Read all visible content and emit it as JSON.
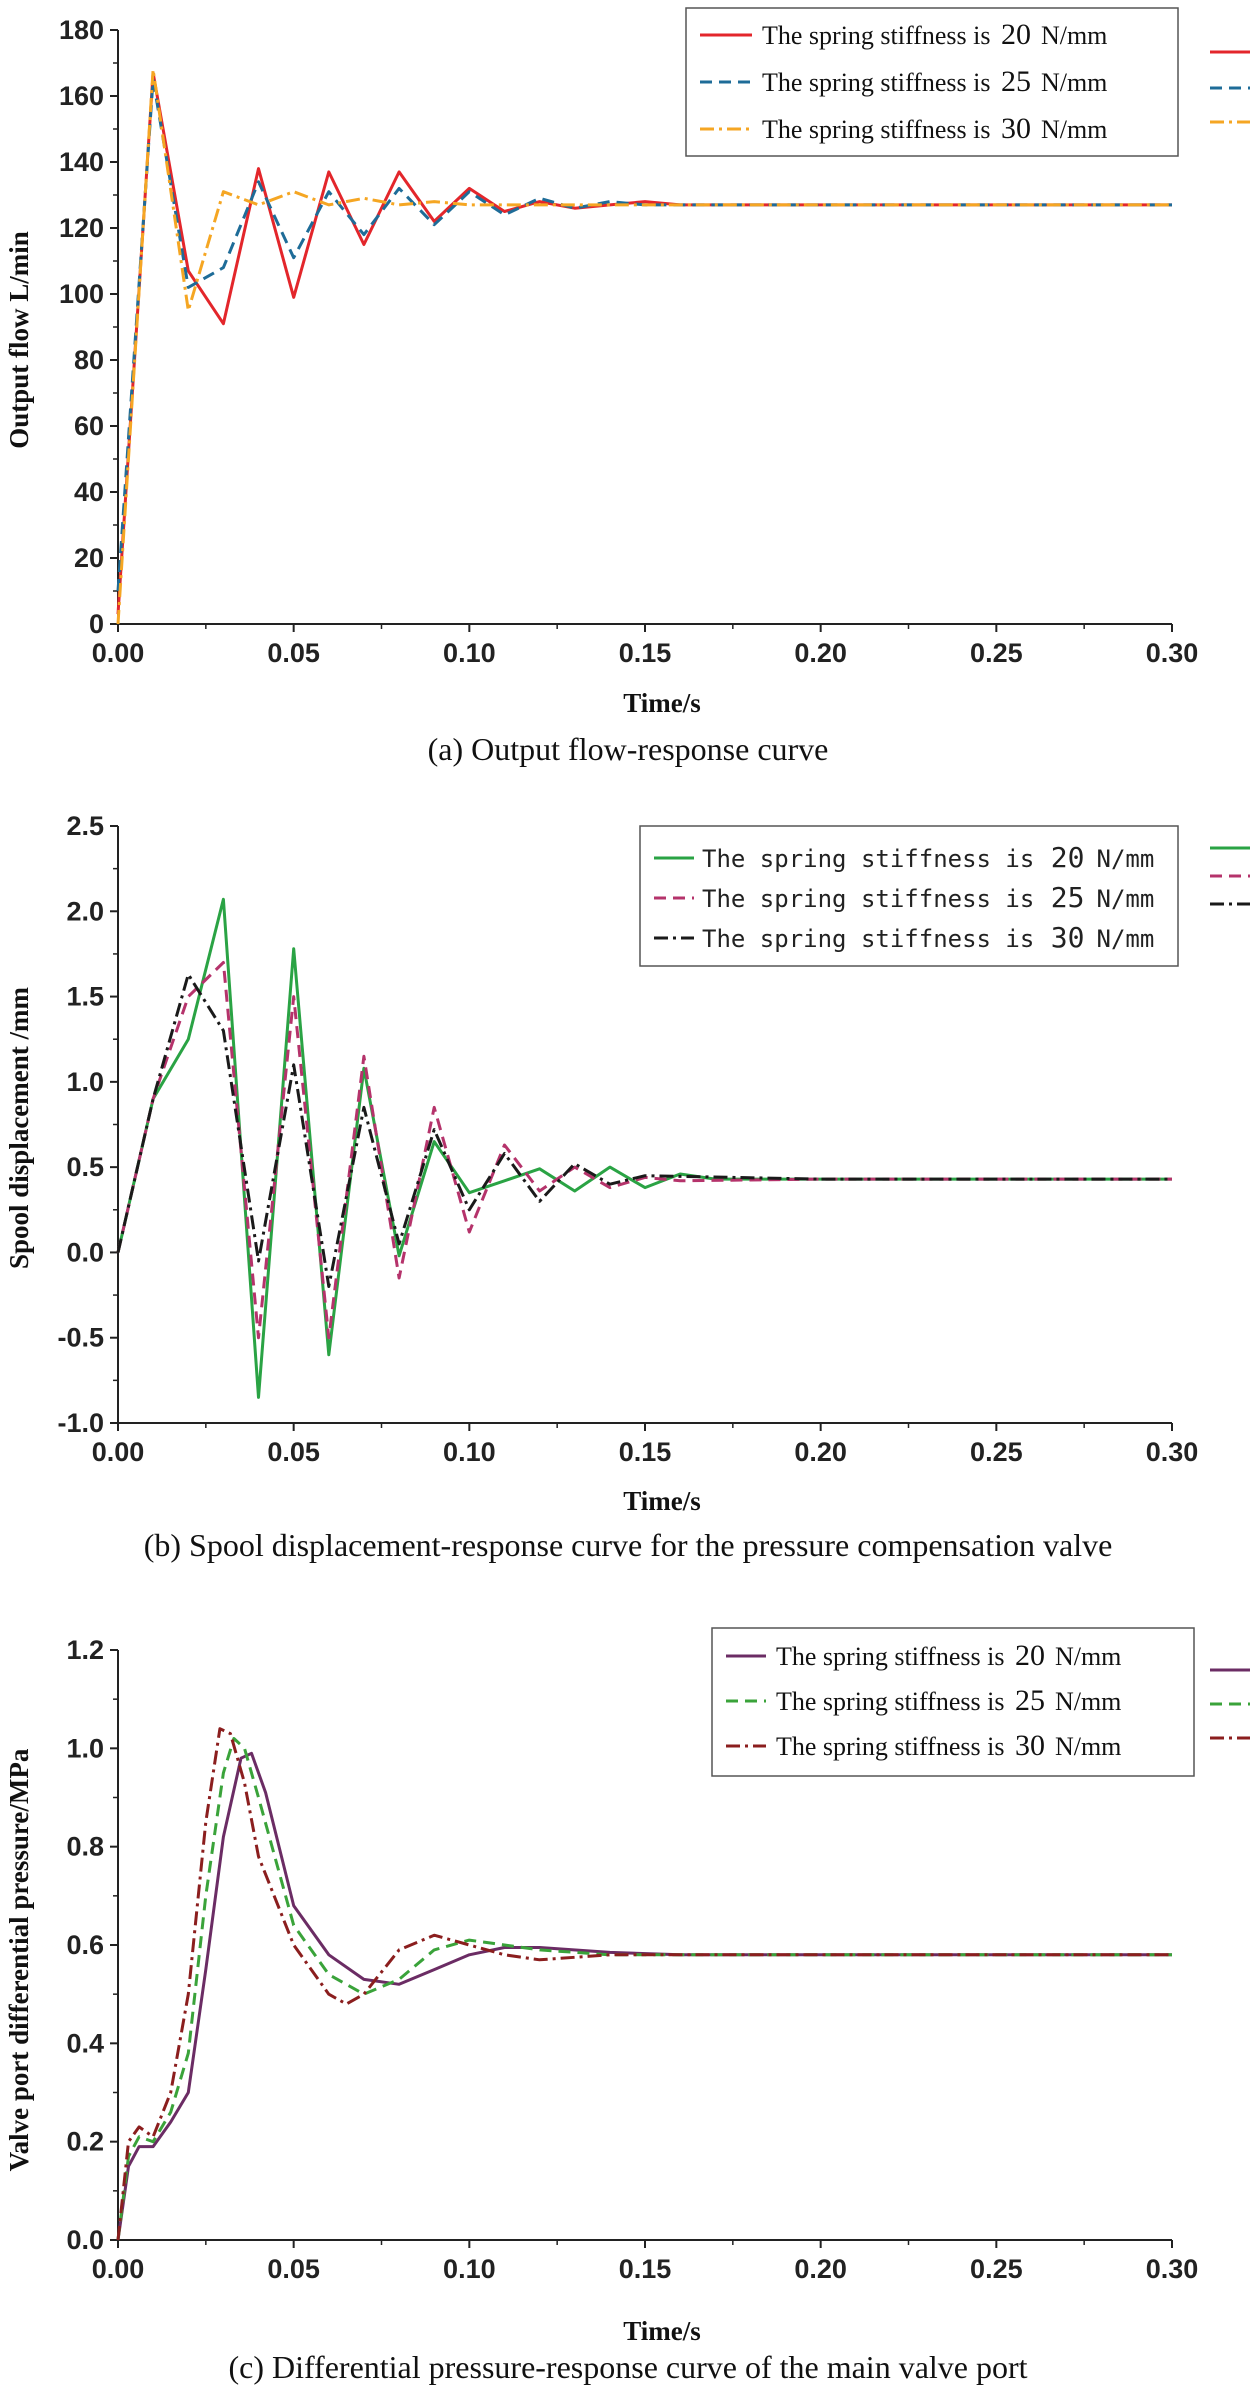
{
  "figure": {
    "captions": [
      "(a) Output flow-response curve",
      "(b) Spool displacement-response curve for the pressure compensation valve",
      "(c) Differential pressure-response curve of the main valve port"
    ]
  },
  "chart_data": [
    {
      "type": "line",
      "caption": "(a) Output flow-response curve",
      "xlabel": "Time/s",
      "ylabel": "Output flow L/min",
      "xlim": [
        0,
        0.3
      ],
      "ylim": [
        0,
        180
      ],
      "xticks": [
        "0.00",
        "0.05",
        "0.10",
        "0.15",
        "0.20",
        "0.25",
        "0.30"
      ],
      "yticks": [
        "0",
        "20",
        "40",
        "60",
        "80",
        "100",
        "120",
        "140",
        "160",
        "180"
      ],
      "legend_position": "top-right",
      "series": [
        {
          "name": "The spring stiffness is 20 N/mm",
          "label_prefix": "The spring stiffness is ",
          "value": "20",
          "unit": "N/mm",
          "color": "#e3262b",
          "dash": "solid",
          "x": [
            0,
            0.01,
            0.02,
            0.03,
            0.04,
            0.05,
            0.06,
            0.07,
            0.08,
            0.09,
            0.1,
            0.11,
            0.12,
            0.13,
            0.14,
            0.15,
            0.16,
            0.17,
            0.2,
            0.25,
            0.3
          ],
          "y": [
            3,
            167,
            107,
            91,
            138,
            99,
            137,
            115,
            137,
            122,
            132,
            125,
            128,
            126,
            127,
            128,
            127,
            127,
            127,
            127,
            127
          ]
        },
        {
          "name": "The spring stiffness is 25 N/mm",
          "label_prefix": "The spring stiffness is ",
          "value": "25",
          "unit": "N/mm",
          "color": "#1e6c98",
          "dash": "dashed",
          "x": [
            0,
            0.01,
            0.02,
            0.03,
            0.04,
            0.05,
            0.06,
            0.07,
            0.08,
            0.09,
            0.1,
            0.11,
            0.12,
            0.13,
            0.14,
            0.15,
            0.2,
            0.25,
            0.3
          ],
          "y": [
            10,
            165,
            102,
            108,
            134,
            111,
            131,
            118,
            132,
            121,
            131,
            124,
            129,
            126,
            128,
            127,
            127,
            127,
            127
          ]
        },
        {
          "name": "The spring stiffness is 30 N/mm",
          "label_prefix": "The spring stiffness is ",
          "value": "30",
          "unit": "N/mm",
          "color": "#f5a623",
          "dash": "dashdot",
          "x": [
            0,
            0.01,
            0.02,
            0.03,
            0.04,
            0.05,
            0.06,
            0.07,
            0.08,
            0.09,
            0.1,
            0.11,
            0.12,
            0.15,
            0.2,
            0.25,
            0.3
          ],
          "y": [
            0,
            168,
            95,
            131,
            127,
            131,
            127,
            129,
            127,
            128,
            127,
            127,
            127,
            127,
            127,
            127,
            127
          ]
        }
      ]
    },
    {
      "type": "line",
      "caption": "(b) Spool displacement-response curve for the pressure compensation valve",
      "xlabel": "Time/s",
      "ylabel": "Spool displacement /mm",
      "xlim": [
        0,
        0.3
      ],
      "ylim": [
        -1.0,
        2.5
      ],
      "xticks": [
        "0.00",
        "0.05",
        "0.10",
        "0.15",
        "0.20",
        "0.25",
        "0.30"
      ],
      "yticks": [
        "-1.0",
        "-0.5",
        "0.0",
        "0.5",
        "1.0",
        "1.5",
        "2.0",
        "2.5"
      ],
      "legend_position": "top-right",
      "series": [
        {
          "name": "The spring stiffness is 20 N/mm",
          "label_prefix": "The spring stiffness is ",
          "value": "20",
          "unit": "N/mm",
          "color": "#2aa344",
          "dash": "solid",
          "x": [
            0,
            0.01,
            0.02,
            0.03,
            0.04,
            0.05,
            0.06,
            0.07,
            0.08,
            0.09,
            0.1,
            0.11,
            0.12,
            0.13,
            0.14,
            0.15,
            0.16,
            0.17,
            0.2,
            0.25,
            0.3
          ],
          "y": [
            0,
            0.9,
            1.25,
            2.07,
            -0.85,
            1.78,
            -0.6,
            1.08,
            -0.02,
            0.65,
            0.35,
            0.42,
            0.49,
            0.36,
            0.5,
            0.38,
            0.46,
            0.43,
            0.43,
            0.43,
            0.43
          ]
        },
        {
          "name": "The spring stiffness is 25 N/mm",
          "label_prefix": "The spring stiffness is ",
          "value": "25",
          "unit": "N/mm",
          "color": "#b5336b",
          "dash": "dashed",
          "x": [
            0,
            0.01,
            0.02,
            0.03,
            0.04,
            0.05,
            0.06,
            0.07,
            0.08,
            0.09,
            0.1,
            0.11,
            0.12,
            0.13,
            0.14,
            0.15,
            0.16,
            0.2,
            0.25,
            0.3
          ],
          "y": [
            0,
            0.9,
            1.5,
            1.7,
            -0.5,
            1.5,
            -0.5,
            1.15,
            -0.15,
            0.85,
            0.12,
            0.63,
            0.36,
            0.5,
            0.38,
            0.44,
            0.42,
            0.43,
            0.43,
            0.43
          ]
        },
        {
          "name": "The spring stiffness is 30 N/mm",
          "label_prefix": "The spring stiffness is ",
          "value": "30",
          "unit": "N/mm",
          "color": "#1a1a1a",
          "dash": "dashdot",
          "x": [
            0,
            0.01,
            0.02,
            0.03,
            0.04,
            0.05,
            0.06,
            0.07,
            0.08,
            0.09,
            0.1,
            0.11,
            0.12,
            0.13,
            0.14,
            0.15,
            0.2,
            0.25,
            0.3
          ],
          "y": [
            0,
            0.9,
            1.63,
            1.3,
            -0.05,
            1.1,
            -0.2,
            0.85,
            0.05,
            0.72,
            0.25,
            0.58,
            0.3,
            0.52,
            0.4,
            0.45,
            0.43,
            0.43,
            0.43
          ]
        }
      ]
    },
    {
      "type": "line",
      "caption": "(c) Differential pressure-response curve of the main valve port",
      "xlabel": "Time/s",
      "ylabel": "Valve port differential pressure/MPa",
      "xlim": [
        0,
        0.3
      ],
      "ylim": [
        0,
        1.2
      ],
      "xticks": [
        "0.00",
        "0.05",
        "0.10",
        "0.15",
        "0.20",
        "0.25",
        "0.30"
      ],
      "yticks": [
        "0.0",
        "0.2",
        "0.4",
        "0.6",
        "0.8",
        "1.0",
        "1.2"
      ],
      "legend_position": "top-right",
      "series": [
        {
          "name": "The spring stiffness is 20 N/mm",
          "label_prefix": "The spring stiffness is ",
          "value": "20",
          "unit": "N/mm",
          "color": "#6b2c64",
          "dash": "solid",
          "x": [
            0,
            0.003,
            0.006,
            0.01,
            0.015,
            0.02,
            0.025,
            0.03,
            0.035,
            0.038,
            0.042,
            0.05,
            0.06,
            0.07,
            0.08,
            0.09,
            0.1,
            0.11,
            0.12,
            0.14,
            0.16,
            0.2,
            0.25,
            0.3
          ],
          "y": [
            0.0,
            0.15,
            0.19,
            0.19,
            0.24,
            0.3,
            0.55,
            0.82,
            0.98,
            0.99,
            0.91,
            0.68,
            0.58,
            0.53,
            0.52,
            0.55,
            0.58,
            0.595,
            0.595,
            0.585,
            0.58,
            0.58,
            0.58,
            0.58
          ]
        },
        {
          "name": "The spring stiffness is 25 N/mm",
          "label_prefix": "The spring stiffness is ",
          "value": "25",
          "unit": "N/mm",
          "color": "#3aa33a",
          "dash": "dashed",
          "x": [
            0,
            0.003,
            0.006,
            0.01,
            0.015,
            0.02,
            0.025,
            0.03,
            0.033,
            0.036,
            0.04,
            0.05,
            0.06,
            0.07,
            0.08,
            0.09,
            0.1,
            0.11,
            0.12,
            0.14,
            0.16,
            0.2,
            0.25,
            0.3
          ],
          "y": [
            0.0,
            0.17,
            0.21,
            0.2,
            0.26,
            0.38,
            0.7,
            0.95,
            1.02,
            1.0,
            0.9,
            0.64,
            0.54,
            0.5,
            0.53,
            0.59,
            0.61,
            0.6,
            0.59,
            0.58,
            0.58,
            0.58,
            0.58,
            0.58
          ]
        },
        {
          "name": "The spring stiffness is 30 N/mm",
          "label_prefix": "The spring stiffness is ",
          "value": "30",
          "unit": "N/mm",
          "color": "#8b1e1e",
          "dash": "dashdot",
          "x": [
            0,
            0.003,
            0.006,
            0.01,
            0.015,
            0.02,
            0.025,
            0.029,
            0.032,
            0.036,
            0.04,
            0.05,
            0.06,
            0.065,
            0.07,
            0.08,
            0.09,
            0.1,
            0.11,
            0.12,
            0.14,
            0.16,
            0.2,
            0.25,
            0.3
          ],
          "y": [
            0.0,
            0.2,
            0.23,
            0.21,
            0.3,
            0.5,
            0.85,
            1.04,
            1.03,
            0.93,
            0.78,
            0.6,
            0.5,
            0.48,
            0.5,
            0.59,
            0.62,
            0.6,
            0.58,
            0.57,
            0.58,
            0.58,
            0.58,
            0.58,
            0.58
          ]
        }
      ]
    }
  ]
}
